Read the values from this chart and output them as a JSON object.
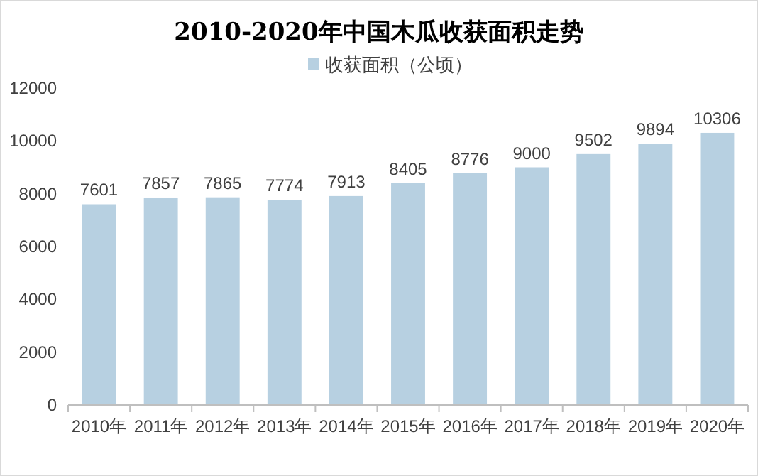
{
  "chart_data": {
    "type": "bar",
    "title": "2010-2020年中国木瓜收获面积走势",
    "categories": [
      "2010年",
      "2011年",
      "2012年",
      "2013年",
      "2014年",
      "2015年",
      "2016年",
      "2017年",
      "2018年",
      "2019年",
      "2020年"
    ],
    "series": [
      {
        "name": "收获面积（公顷）",
        "color": "#b7d0e1",
        "values": [
          7601,
          7857,
          7865,
          7774,
          7913,
          8405,
          8776,
          9000,
          9502,
          9894,
          10306
        ]
      }
    ],
    "ylim": [
      0,
      12000
    ],
    "yticks": [
      0,
      2000,
      4000,
      6000,
      8000,
      10000,
      12000
    ],
    "data_labels": true,
    "legend": "top"
  }
}
